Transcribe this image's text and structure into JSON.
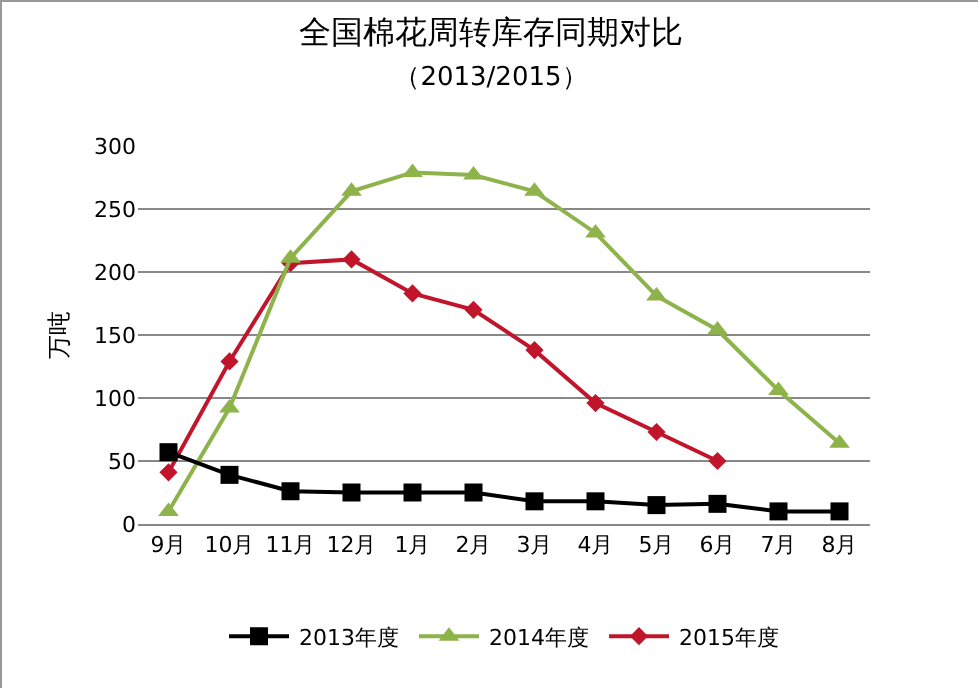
{
  "chart_data": {
    "type": "line",
    "title": "全国棉花周转库存同期对比",
    "subtitle": "（2013/2015）",
    "ylabel": "万吨",
    "categories": [
      "9月",
      "10月",
      "11月",
      "12月",
      "1月",
      "2月",
      "3月",
      "4月",
      "5月",
      "6月",
      "7月",
      "8月"
    ],
    "series": [
      {
        "name": "2013年度",
        "color": "#000000",
        "marker": "square",
        "values": [
          57,
          39,
          26,
          25,
          25,
          25,
          18,
          18,
          15,
          16,
          10,
          10
        ]
      },
      {
        "name": "2014年度",
        "color": "#8db34a",
        "marker": "triangle",
        "values": [
          10,
          92,
          211,
          264,
          279,
          277,
          264,
          231,
          181,
          154,
          106,
          64
        ]
      },
      {
        "name": "2015年度",
        "color": "#c0152b",
        "marker": "diamond",
        "values": [
          41,
          129,
          207,
          210,
          183,
          170,
          138,
          96,
          73,
          50,
          null,
          null
        ]
      }
    ],
    "ylim": [
      0,
      300
    ],
    "yticks": [
      0,
      50,
      100,
      150,
      200,
      250,
      300
    ],
    "grid": "y",
    "legend": "bottom",
    "line_style": "solid"
  }
}
